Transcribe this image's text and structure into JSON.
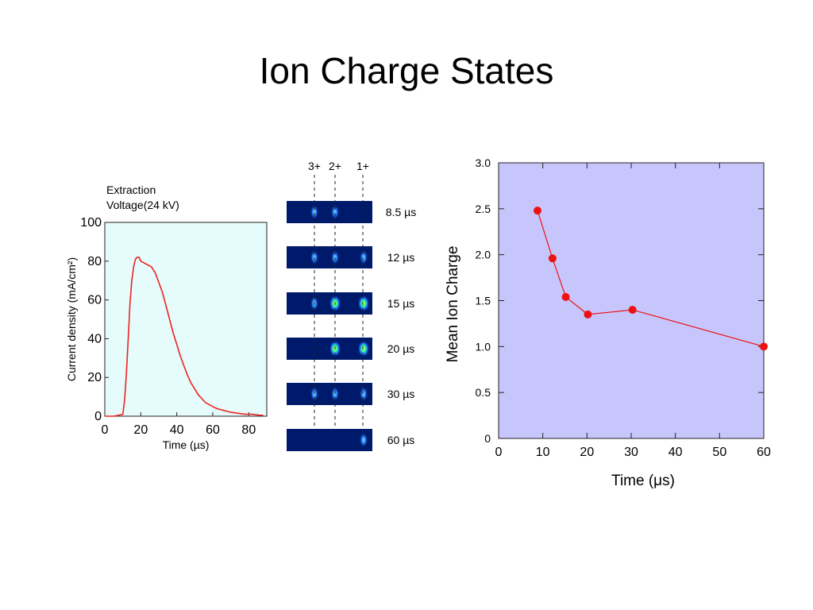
{
  "slide": {
    "title": "Ion Charge States"
  },
  "left_annotation": {
    "line1": "Extraction",
    "line2": "Voltage(24 kV)"
  },
  "strip_panel": {
    "columns": [
      "3+",
      "2+",
      "1+"
    ],
    "rows": [
      "8.5 µs",
      "12 µs",
      "15 µs",
      "20 µs",
      "30 µs",
      "60 µs"
    ]
  },
  "colors": {
    "curve": "#ee2222",
    "left_bg": "#e6fbfb",
    "right_bg": "#c6c6fc",
    "strip_bg": "#001a6b"
  },
  "chart_data": [
    {
      "type": "line",
      "title": "",
      "xlabel": "Time (µs)",
      "ylabel": "Current density (mA/cm²)",
      "xlim": [
        0,
        90
      ],
      "ylim": [
        0,
        100
      ],
      "xticks": [
        "0",
        "20",
        "40",
        "60",
        "80"
      ],
      "yticks": [
        "0",
        "20",
        "40",
        "60",
        "80",
        "100"
      ],
      "background": "#e6fbfb",
      "series": [
        {
          "color": "#ee2222",
          "x": [
            0,
            5,
            10,
            11,
            12,
            13,
            14,
            15,
            16,
            17,
            18,
            19,
            20,
            22,
            24,
            26,
            28,
            30,
            32,
            34,
            36,
            38,
            40,
            42,
            44,
            46,
            48,
            50,
            52,
            54,
            56,
            58,
            60,
            62,
            64,
            66,
            68,
            70,
            74,
            78,
            82,
            86,
            88
          ],
          "y": [
            0,
            0,
            1,
            8,
            22,
            40,
            58,
            70,
            77,
            81,
            82,
            82,
            80,
            79,
            78,
            77,
            74,
            69,
            64,
            57,
            50,
            43,
            37,
            31,
            26,
            21,
            17,
            14,
            11,
            9,
            7,
            6,
            5,
            4,
            3.5,
            3,
            2.5,
            2,
            1.5,
            1,
            1,
            0.5,
            0.5
          ]
        }
      ]
    },
    {
      "type": "line",
      "title": "",
      "xlabel": "Time (μs)",
      "ylabel": "Mean Ion Charge",
      "xlim": [
        0,
        60
      ],
      "ylim": [
        0,
        3
      ],
      "xticks": [
        "0",
        "10",
        "20",
        "30",
        "40",
        "50",
        "60"
      ],
      "yticks": [
        "0",
        "0.5",
        "1.0",
        "1.5",
        "2.0",
        "2.5",
        "3.0"
      ],
      "background": "#c6c6fc",
      "series": [
        {
          "color": "#ee1111",
          "x": [
            8.8,
            12.2,
            15.2,
            20.2,
            30.3,
            60
          ],
          "y": [
            2.48,
            1.96,
            1.54,
            1.35,
            1.4,
            1.0
          ]
        }
      ]
    }
  ]
}
